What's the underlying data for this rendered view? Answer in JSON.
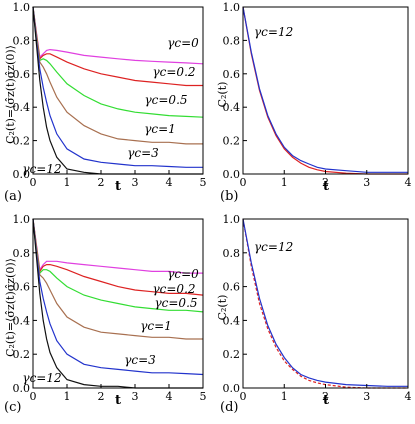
{
  "chart_data": [
    {
      "panel": "(a)",
      "type": "line",
      "ylabel": "C₂(t)=⟨σ̂z(t)σ̂z(0)⟩",
      "xlabel": "t",
      "xlim": [
        0,
        5
      ],
      "ylim": [
        0,
        1.0
      ],
      "xticks": [
        "0",
        "1",
        "2",
        "3",
        "4",
        "5"
      ],
      "yticks": [
        "0.0",
        "0.2",
        "0.4",
        "0.6",
        "0.8",
        "1.0"
      ],
      "series": [
        {
          "name": "γc=0",
          "color": "#e040e0",
          "x": [
            0,
            0.1,
            0.2,
            0.3,
            0.4,
            0.5,
            0.7,
            1,
            1.5,
            2,
            2.5,
            3,
            3.5,
            4,
            4.5,
            5
          ],
          "y": [
            1,
            0.85,
            0.7,
            0.72,
            0.74,
            0.745,
            0.74,
            0.73,
            0.71,
            0.7,
            0.69,
            0.68,
            0.675,
            0.67,
            0.665,
            0.66
          ]
        },
        {
          "name": "γc=0.2",
          "color": "#dd2222",
          "x": [
            0,
            0.1,
            0.2,
            0.3,
            0.4,
            0.5,
            0.7,
            1,
            1.5,
            2,
            2.5,
            3,
            3.5,
            4,
            4.5,
            5
          ],
          "y": [
            1,
            0.84,
            0.69,
            0.71,
            0.72,
            0.72,
            0.7,
            0.67,
            0.63,
            0.6,
            0.58,
            0.56,
            0.55,
            0.54,
            0.53,
            0.53
          ]
        },
        {
          "name": "γc=0.5",
          "color": "#33dd33",
          "x": [
            0,
            0.1,
            0.2,
            0.3,
            0.4,
            0.5,
            0.7,
            1,
            1.5,
            2,
            2.5,
            3,
            3.5,
            4,
            4.5,
            5
          ],
          "y": [
            1,
            0.83,
            0.68,
            0.69,
            0.68,
            0.66,
            0.61,
            0.54,
            0.47,
            0.42,
            0.39,
            0.37,
            0.36,
            0.35,
            0.345,
            0.34
          ]
        },
        {
          "name": "γc=1",
          "color": "#a87050",
          "x": [
            0,
            0.1,
            0.2,
            0.3,
            0.4,
            0.5,
            0.7,
            1,
            1.5,
            2,
            2.5,
            3,
            3.5,
            4,
            4.5,
            5
          ],
          "y": [
            1,
            0.82,
            0.67,
            0.64,
            0.6,
            0.55,
            0.46,
            0.37,
            0.29,
            0.24,
            0.21,
            0.2,
            0.19,
            0.19,
            0.18,
            0.18
          ]
        },
        {
          "name": "γc=3",
          "color": "#2233cc",
          "x": [
            0,
            0.1,
            0.2,
            0.3,
            0.4,
            0.5,
            0.7,
            1,
            1.5,
            2,
            2.5,
            3,
            3.5,
            4,
            4.5,
            5
          ],
          "y": [
            1,
            0.8,
            0.63,
            0.52,
            0.43,
            0.35,
            0.24,
            0.15,
            0.09,
            0.07,
            0.06,
            0.05,
            0.05,
            0.045,
            0.04,
            0.04
          ]
        },
        {
          "name": "γc=12",
          "color": "#111111",
          "x": [
            0,
            0.1,
            0.2,
            0.3,
            0.4,
            0.5,
            0.7,
            1,
            1.5,
            2,
            2.5,
            3,
            3.5,
            4,
            4.5,
            5
          ],
          "y": [
            1,
            0.78,
            0.56,
            0.4,
            0.28,
            0.2,
            0.1,
            0.03,
            0.01,
            0.0,
            0.0,
            0.0,
            0.0,
            0.0,
            0.0,
            0.0
          ]
        }
      ],
      "labels": [
        "γc=0",
        "γc=0.2",
        "γc=0.5",
        "γc=1",
        "γc=3",
        "γc=12"
      ]
    },
    {
      "panel": "(b)",
      "type": "line",
      "ylabel": "C₂(t)",
      "xlabel": "t",
      "xlim": [
        0,
        4
      ],
      "ylim": [
        0,
        1.0
      ],
      "xticks": [
        "0",
        "1",
        "2",
        "3",
        "4"
      ],
      "yticks": [
        "0.0",
        "0.2",
        "0.4",
        "0.6",
        "0.8",
        "1.0"
      ],
      "annotation": "γc=12",
      "series": [
        {
          "color": "#dd2222",
          "dashed": false,
          "x": [
            0,
            0.2,
            0.4,
            0.6,
            0.8,
            1.0,
            1.2,
            1.4,
            1.6,
            1.8,
            2.0,
            2.5,
            3,
            3.5,
            4
          ],
          "y": [
            1,
            0.72,
            0.5,
            0.34,
            0.23,
            0.15,
            0.1,
            0.065,
            0.04,
            0.025,
            0.015,
            0.005,
            0.0,
            0.0,
            0.0
          ]
        },
        {
          "color": "#2233cc",
          "dashed": false,
          "x": [
            0,
            0.2,
            0.4,
            0.6,
            0.8,
            1.0,
            1.2,
            1.4,
            1.6,
            1.8,
            2.0,
            2.5,
            3,
            3.5,
            4
          ],
          "y": [
            1,
            0.73,
            0.51,
            0.35,
            0.24,
            0.16,
            0.11,
            0.08,
            0.06,
            0.04,
            0.03,
            0.02,
            0.01,
            0.01,
            0.01
          ]
        }
      ]
    },
    {
      "panel": "(c)",
      "type": "line",
      "ylabel": "C₂(t)=⟨σ̂z(t)σ̂z(0)⟩",
      "xlabel": "t",
      "xlim": [
        0,
        5
      ],
      "ylim": [
        0,
        1.0
      ],
      "xticks": [
        "0",
        "1",
        "2",
        "3",
        "4",
        "5"
      ],
      "yticks": [
        "0.0",
        "0.2",
        "0.4",
        "0.6",
        "0.8",
        "1.0"
      ],
      "series": [
        {
          "name": "γc=0",
          "color": "#e040e0",
          "x": [
            0,
            0.1,
            0.2,
            0.3,
            0.4,
            0.5,
            0.7,
            1,
            1.5,
            2,
            2.5,
            3,
            3.5,
            4,
            4.5,
            5
          ],
          "y": [
            1,
            0.85,
            0.7,
            0.73,
            0.75,
            0.75,
            0.75,
            0.74,
            0.73,
            0.72,
            0.71,
            0.7,
            0.69,
            0.69,
            0.68,
            0.68
          ]
        },
        {
          "name": "γc=0.2",
          "color": "#dd2222",
          "x": [
            0,
            0.1,
            0.2,
            0.3,
            0.4,
            0.5,
            0.7,
            1,
            1.5,
            2,
            2.5,
            3,
            3.5,
            4,
            4.5,
            5
          ],
          "y": [
            1,
            0.84,
            0.69,
            0.72,
            0.73,
            0.73,
            0.72,
            0.7,
            0.66,
            0.63,
            0.6,
            0.58,
            0.57,
            0.56,
            0.56,
            0.55
          ]
        },
        {
          "name": "γc=0.5",
          "color": "#33dd33",
          "x": [
            0,
            0.1,
            0.2,
            0.3,
            0.4,
            0.5,
            0.7,
            1,
            1.5,
            2,
            2.5,
            3,
            3.5,
            4,
            4.5,
            5
          ],
          "y": [
            1,
            0.83,
            0.68,
            0.7,
            0.7,
            0.69,
            0.65,
            0.6,
            0.55,
            0.52,
            0.5,
            0.48,
            0.47,
            0.46,
            0.46,
            0.45
          ]
        },
        {
          "name": "γc=1",
          "color": "#a87050",
          "x": [
            0,
            0.1,
            0.2,
            0.3,
            0.4,
            0.5,
            0.7,
            1,
            1.5,
            2,
            2.5,
            3,
            3.5,
            4,
            4.5,
            5
          ],
          "y": [
            1,
            0.82,
            0.67,
            0.65,
            0.62,
            0.58,
            0.5,
            0.42,
            0.36,
            0.33,
            0.32,
            0.31,
            0.3,
            0.3,
            0.29,
            0.29
          ]
        },
        {
          "name": "γc=3",
          "color": "#2233cc",
          "x": [
            0,
            0.1,
            0.2,
            0.3,
            0.4,
            0.5,
            0.7,
            1,
            1.5,
            2,
            2.5,
            3,
            3.5,
            4,
            4.5,
            5
          ],
          "y": [
            1,
            0.8,
            0.63,
            0.53,
            0.45,
            0.38,
            0.28,
            0.2,
            0.14,
            0.12,
            0.11,
            0.1,
            0.09,
            0.09,
            0.085,
            0.08
          ]
        },
        {
          "name": "γc=12",
          "color": "#111111",
          "x": [
            0,
            0.1,
            0.2,
            0.3,
            0.4,
            0.5,
            0.7,
            1,
            1.5,
            2,
            2.5,
            3,
            3.5,
            4,
            4.5,
            5
          ],
          "y": [
            1,
            0.78,
            0.56,
            0.4,
            0.29,
            0.21,
            0.12,
            0.05,
            0.02,
            0.01,
            0.01,
            0.0,
            0.0,
            0.0,
            0.0,
            0.0
          ]
        }
      ],
      "labels": [
        "γc=0",
        "γc=0.2",
        "γc=0.5",
        "γc=1",
        "γc=3",
        "γc=12"
      ]
    },
    {
      "panel": "(d)",
      "type": "line",
      "ylabel": "C₂(t)",
      "xlabel": "t",
      "xlim": [
        0,
        4
      ],
      "ylim": [
        0,
        1.0
      ],
      "xticks": [
        "0",
        "1",
        "2",
        "3",
        "4"
      ],
      "yticks": [
        "0.0",
        "0.2",
        "0.4",
        "0.6",
        "0.8",
        "1.0"
      ],
      "annotation": "γc=12",
      "series": [
        {
          "color": "#dd2222",
          "dashed": true,
          "x": [
            0,
            0.2,
            0.4,
            0.6,
            0.8,
            1.0,
            1.2,
            1.4,
            1.6,
            1.8,
            2.0,
            2.5,
            3,
            3.5,
            4
          ],
          "y": [
            1,
            0.72,
            0.5,
            0.35,
            0.24,
            0.16,
            0.11,
            0.07,
            0.045,
            0.03,
            0.02,
            0.005,
            0.0,
            0.0,
            0.0
          ]
        },
        {
          "color": "#2233cc",
          "dashed": false,
          "x": [
            0,
            0.2,
            0.4,
            0.6,
            0.8,
            1.0,
            1.2,
            1.4,
            1.6,
            1.8,
            2.0,
            2.5,
            3,
            3.5,
            4
          ],
          "y": [
            1,
            0.74,
            0.53,
            0.37,
            0.26,
            0.18,
            0.12,
            0.08,
            0.06,
            0.045,
            0.035,
            0.02,
            0.015,
            0.01,
            0.01
          ]
        }
      ]
    }
  ]
}
